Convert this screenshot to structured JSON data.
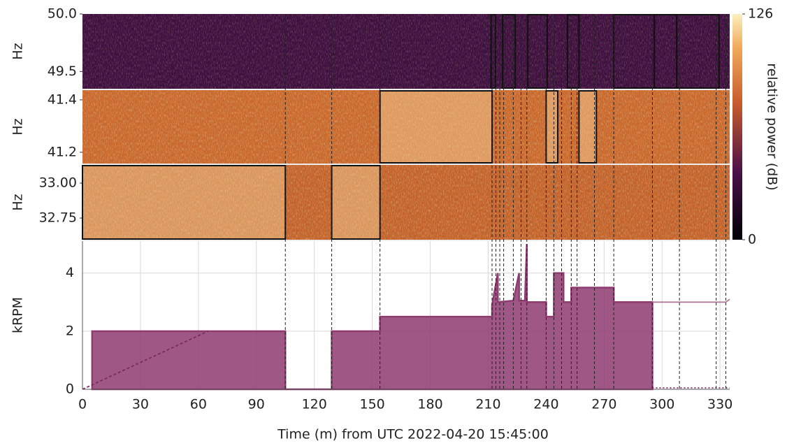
{
  "chart_data": [
    {
      "type": "spectrogram",
      "ylabel": "Hz",
      "ylim": [
        49.35,
        50.0
      ],
      "yticks": [
        {
          "value": 50.0,
          "label": "50.0"
        },
        49.5
      ],
      "base_color": "#3d0f3e",
      "boxes": [
        [
          211.5,
          213.8
        ],
        [
          217.5,
          224
        ],
        [
          230.5,
          240.6
        ],
        [
          251,
          257
        ],
        [
          275,
          296
        ],
        [
          296,
          307.6
        ],
        [
          307.6,
          329.5
        ]
      ]
    },
    {
      "type": "spectrogram",
      "ylabel": "Hz",
      "ylim": [
        41.157,
        41.437
      ],
      "yticks": [
        41.4,
        41.2
      ],
      "base_color": "#c8682c",
      "boxes": [
        [
          154,
          212
        ],
        [
          240,
          246
        ],
        [
          257,
          266
        ]
      ]
    },
    {
      "type": "spectrogram",
      "ylabel": "Hz",
      "ylim": [
        32.595,
        33.13
      ],
      "yticks": [
        {
          "value": 33.0,
          "label": "33.00"
        },
        32.75
      ],
      "base_color": "#c2622a",
      "boxes": [
        [
          0,
          105
        ],
        [
          129,
          154
        ]
      ]
    },
    {
      "type": "area",
      "ylabel": "kRPM",
      "xlabel": "Time (m) from UTC 2022-04-20 15:45:00",
      "xlim": [
        0,
        335
      ],
      "xticks": [
        0,
        30,
        60,
        90,
        120,
        150,
        180,
        210,
        240,
        270,
        300,
        330
      ],
      "ylim": [
        0,
        5.1
      ],
      "yticks": [
        0,
        2,
        4
      ],
      "grid": true,
      "event_times": [
        105,
        129,
        154,
        212,
        214,
        216,
        218,
        223,
        227,
        230,
        240,
        244,
        248,
        253,
        256,
        265,
        275,
        295,
        309,
        328,
        333
      ],
      "series": [
        {
          "color": "#8e3b70",
          "fill": true,
          "dash": "solid",
          "x": [
            5,
            5,
            105,
            105,
            129,
            129,
            154,
            154,
            212,
            212,
            215,
            215,
            223,
            226,
            226,
            229,
            230,
            230,
            240,
            240,
            244,
            244,
            249,
            249,
            253,
            253,
            275,
            275,
            295,
            295
          ],
          "values": [
            0,
            2,
            2,
            0,
            0,
            2,
            2,
            2.5,
            2.5,
            2.9,
            4,
            3,
            3.05,
            4,
            3.05,
            3.05,
            5,
            3,
            3,
            2.5,
            2.5,
            4,
            4,
            3,
            3,
            3.5,
            3.5,
            3,
            3,
            0
          ]
        },
        {
          "color": "#7a2a5e",
          "fill": false,
          "dash": "dashed",
          "x": [
            0,
            65
          ],
          "values": [
            0,
            2
          ]
        },
        {
          "color": "#b07a9a",
          "fill": false,
          "dash": "solid",
          "x": [
            295,
            333,
            335
          ],
          "values": [
            3,
            3,
            3.1
          ]
        },
        {
          "color": "#8e3b70",
          "fill": false,
          "dash": "dotted",
          "x": [
            295,
            335
          ],
          "values": [
            0.05,
            0.05
          ]
        }
      ]
    },
    {
      "type": "colorbar",
      "label": "relative power (dB)",
      "lim": [
        0,
        126
      ],
      "ticks": [
        0,
        126
      ]
    }
  ]
}
